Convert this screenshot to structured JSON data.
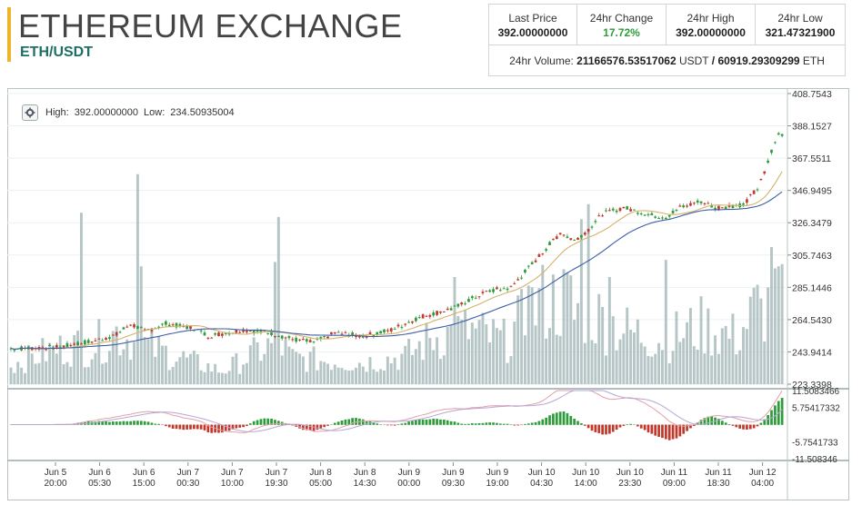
{
  "header": {
    "title": "ETHEREUM EXCHANGE",
    "pair": "ETH/USDT"
  },
  "stats": {
    "last_price_label": "Last Price",
    "last_price": "392.00000000",
    "change_label": "24hr Change",
    "change": "17.72%",
    "high_label": "24hr High",
    "high": "392.00000000",
    "low_label": "24hr Low",
    "low": "321.47321900",
    "volume_label": "24hr Volume:",
    "volume_usdt": "21166576.53517062",
    "volume_usdt_unit": "USDT",
    "volume_sep": "/",
    "volume_eth": "60919.29309299",
    "volume_eth_unit": "ETH"
  },
  "legend": {
    "high_label": "High:",
    "high": "392.00000000",
    "low_label": "Low:",
    "low": "234.50935004",
    "settings_icon": "gear-icon"
  },
  "colors": {
    "up": "#2e9c3a",
    "down": "#c0392b",
    "volume": "#a9bcbc",
    "ma_fast": "#d4b36a",
    "ma_slow": "#3d5fa8",
    "accent": "#f0b429",
    "pair": "#1d6f66"
  },
  "chart_data": [
    {
      "type": "candlestick",
      "title": "",
      "ylim": [
        223.3398,
        408.7543
      ],
      "y_ticks": [
        "408.7543",
        "388.1527",
        "367.5511",
        "346.9495",
        "326.3479",
        "305.7463",
        "285.1446",
        "264.5430",
        "243.9414",
        "223.3398"
      ],
      "x_ticks": [
        [
          "Jun 5",
          "20:00"
        ],
        [
          "Jun 6",
          "05:30"
        ],
        [
          "Jun 6",
          "15:00"
        ],
        [
          "Jun 7",
          "00:30"
        ],
        [
          "Jun 7",
          "10:00"
        ],
        [
          "Jun 7",
          "19:30"
        ],
        [
          "Jun 8",
          "05:00"
        ],
        [
          "Jun 8",
          "14:30"
        ],
        [
          "Jun 9",
          "00:00"
        ],
        [
          "Jun 9",
          "09:30"
        ],
        [
          "Jun 9",
          "19:00"
        ],
        [
          "Jun 10",
          "04:30"
        ],
        [
          "Jun 10",
          "14:00"
        ],
        [
          "Jun 10",
          "23:30"
        ],
        [
          "Jun 11",
          "09:00"
        ],
        [
          "Jun 11",
          "18:30"
        ],
        [
          "Jun 12",
          "04:00"
        ]
      ],
      "price_path": [
        [
          0,
          246
        ],
        [
          14,
          247
        ],
        [
          18,
          249
        ],
        [
          24,
          251
        ],
        [
          30,
          255
        ],
        [
          34,
          262
        ],
        [
          38,
          257
        ],
        [
          44,
          262
        ],
        [
          52,
          259
        ],
        [
          56,
          254
        ],
        [
          66,
          258
        ],
        [
          74,
          256
        ],
        [
          80,
          252
        ],
        [
          86,
          250
        ],
        [
          92,
          256
        ],
        [
          100,
          254
        ],
        [
          108,
          258
        ],
        [
          112,
          262
        ],
        [
          116,
          266
        ],
        [
          126,
          272
        ],
        [
          130,
          277
        ],
        [
          136,
          283
        ],
        [
          142,
          285
        ],
        [
          150,
          305
        ],
        [
          156,
          320
        ],
        [
          160,
          315
        ],
        [
          164,
          322
        ],
        [
          168,
          332
        ],
        [
          174,
          336
        ],
        [
          182,
          331
        ],
        [
          186,
          330
        ],
        [
          190,
          336
        ],
        [
          196,
          340
        ],
        [
          200,
          336
        ],
        [
          208,
          338
        ],
        [
          212,
          348
        ],
        [
          214,
          358
        ],
        [
          216,
          372
        ],
        [
          218,
          383
        ]
      ],
      "volume_path": [
        [
          0,
          0.09
        ],
        [
          10,
          0.15
        ],
        [
          18,
          0.18
        ],
        [
          22,
          0.17
        ],
        [
          30,
          0.24
        ],
        [
          36,
          0.19
        ],
        [
          60,
          0.06
        ],
        [
          72,
          0.17
        ],
        [
          76,
          0.19
        ],
        [
          80,
          0.12
        ],
        [
          100,
          0.1
        ],
        [
          112,
          0.13
        ],
        [
          120,
          0.22
        ],
        [
          130,
          0.25
        ],
        [
          140,
          0.2
        ],
        [
          150,
          0.38
        ],
        [
          158,
          0.39
        ],
        [
          166,
          0.32
        ],
        [
          176,
          0.24
        ],
        [
          186,
          0.21
        ],
        [
          196,
          0.27
        ],
        [
          206,
          0.22
        ],
        [
          212,
          0.35
        ],
        [
          218,
          0.37
        ]
      ],
      "volume_spikes": [
        [
          20,
          0.8
        ],
        [
          36,
          0.98
        ],
        [
          37,
          0.55
        ],
        [
          75,
          0.57
        ],
        [
          76,
          0.78
        ],
        [
          126,
          0.5
        ],
        [
          147,
          0.46
        ],
        [
          160,
          0.3
        ],
        [
          162,
          0.77
        ],
        [
          164,
          0.84
        ],
        [
          170,
          0.5
        ],
        [
          186,
          0.58
        ],
        [
          211,
          0.45
        ],
        [
          213,
          0.4
        ],
        [
          216,
          0.64
        ],
        [
          218,
          0.55
        ]
      ],
      "indicator_ticks": [
        "11.5083466",
        "5.75417332",
        "-5.7541733",
        "-11.508346"
      ]
    }
  ]
}
